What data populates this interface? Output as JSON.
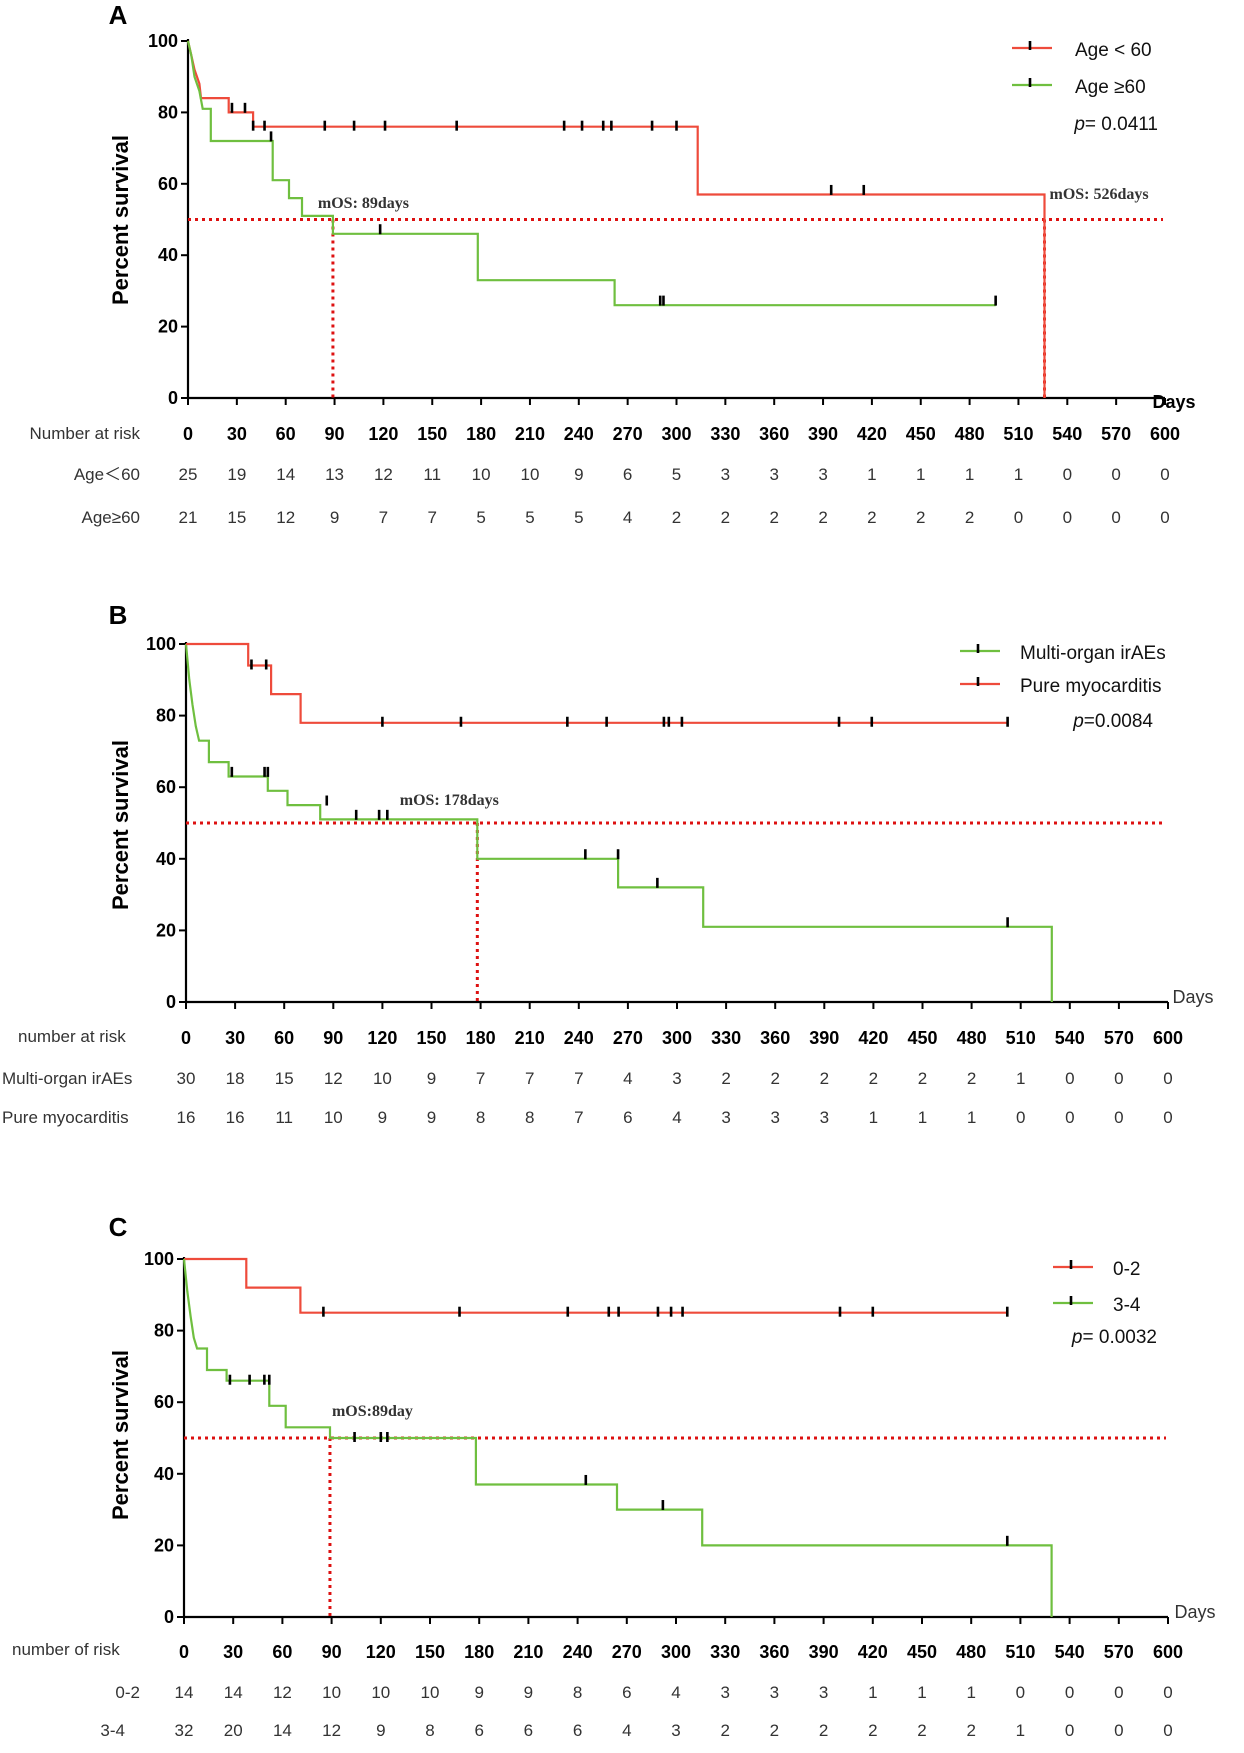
{
  "chart_data": [
    {
      "type": "line",
      "panel": "A",
      "ylabel": "Percent survival",
      "xlabel": "Days",
      "ylim": [
        0,
        100
      ],
      "y_ticks": [
        "0",
        "20",
        "40",
        "60",
        "80",
        "100"
      ],
      "x_ticks": [
        "0",
        "30",
        "60",
        "90",
        "120",
        "150",
        "180",
        "210",
        "240",
        "270",
        "300",
        "330",
        "360",
        "390",
        "420",
        "450",
        "480",
        "510",
        "540",
        "570",
        "600"
      ],
      "p_value_label": "p= 0.0411",
      "risk_title": "Number at risk",
      "series": [
        {
          "name": "Age < 60",
          "risk_label": "Age＜60",
          "color": "#ee4b3b",
          "steps": [
            [
              0,
              100
            ],
            [
              2,
              96
            ],
            [
              4,
              92
            ],
            [
              7,
              88
            ],
            [
              8,
              84
            ],
            [
              25,
              84
            ],
            [
              25,
              80
            ],
            [
              40,
              80
            ],
            [
              40,
              76
            ],
            [
              313,
              76
            ],
            [
              313,
              57
            ],
            [
              526,
              57
            ],
            [
              526,
              0
            ]
          ],
          "censors": [
            [
              27,
              81
            ],
            [
              35,
              81
            ],
            [
              40,
              76
            ],
            [
              47,
              76
            ],
            [
              84,
              76
            ],
            [
              102,
              76
            ],
            [
              121,
              76
            ],
            [
              165,
              76
            ],
            [
              231,
              76
            ],
            [
              242,
              76
            ],
            [
              255,
              76
            ],
            [
              260,
              76
            ],
            [
              285,
              76
            ],
            [
              300,
              76
            ],
            [
              395,
              58
            ],
            [
              415,
              58
            ]
          ],
          "risk": [
            "25",
            "19",
            "14",
            "13",
            "12",
            "11",
            "10",
            "10",
            "9",
            "6",
            "5",
            "3",
            "3",
            "3",
            "1",
            "1",
            "1",
            "1",
            "0",
            "0",
            "0"
          ]
        },
        {
          "name": "Age ≥60",
          "risk_label": "Age≥60",
          "color": "#6fbf3f",
          "steps": [
            [
              0,
              100
            ],
            [
              2,
              96
            ],
            [
              4,
              90
            ],
            [
              7,
              86
            ],
            [
              9,
              81
            ],
            [
              14,
              81
            ],
            [
              14,
              72
            ],
            [
              52,
              72
            ],
            [
              52,
              61
            ],
            [
              62,
              61
            ],
            [
              62,
              56
            ],
            [
              70,
              56
            ],
            [
              70,
              51
            ],
            [
              89,
              51
            ],
            [
              89,
              46
            ],
            [
              178,
              46
            ],
            [
              178,
              33
            ],
            [
              262,
              33
            ],
            [
              262,
              26
            ],
            [
              496,
              26
            ]
          ],
          "censors": [
            [
              51,
              73
            ],
            [
              118,
              47
            ],
            [
              290,
              27
            ],
            [
              292,
              27
            ],
            [
              496,
              27
            ]
          ],
          "risk": [
            "21",
            "15",
            "12",
            "9",
            "7",
            "7",
            "5",
            "5",
            "5",
            "4",
            "2",
            "2",
            "2",
            "2",
            "2",
            "2",
            "2",
            "0",
            "0",
            "0",
            "0"
          ]
        }
      ],
      "reference_line": {
        "y": 50,
        "color": "#dd1111"
      },
      "median_lines": [
        {
          "x": 89,
          "label": "mOS: 89days"
        },
        {
          "x": 526,
          "label": "mOS: 526days"
        }
      ]
    },
    {
      "type": "line",
      "panel": "B",
      "ylabel": "Percent survival",
      "xlabel": "Days",
      "ylim": [
        0,
        100
      ],
      "y_ticks": [
        "0",
        "20",
        "40",
        "60",
        "80",
        "100"
      ],
      "x_ticks": [
        "0",
        "30",
        "60",
        "90",
        "120",
        "150",
        "180",
        "210",
        "240",
        "270",
        "300",
        "330",
        "360",
        "390",
        "420",
        "450",
        "480",
        "510",
        "540",
        "570",
        "600"
      ],
      "p_value_label": "p=0.0084",
      "risk_title": "number at risk",
      "series": [
        {
          "name": "Multi-organ irAEs",
          "risk_label": "Multi-organ irAEs",
          "color": "#6fbf3f",
          "steps": [
            [
              0,
              100
            ],
            [
              2,
              90
            ],
            [
              4,
              83
            ],
            [
              6,
              77
            ],
            [
              8,
              73
            ],
            [
              14,
              73
            ],
            [
              14,
              67
            ],
            [
              26,
              67
            ],
            [
              26,
              63
            ],
            [
              50,
              63
            ],
            [
              50,
              59
            ],
            [
              62,
              59
            ],
            [
              62,
              55
            ],
            [
              82,
              55
            ],
            [
              82,
              51
            ],
            [
              178,
              51
            ],
            [
              178,
              40
            ],
            [
              264,
              40
            ],
            [
              264,
              32
            ],
            [
              316,
              32
            ],
            [
              316,
              21
            ],
            [
              529,
              21
            ],
            [
              529,
              0
            ]
          ],
          "censors": [
            [
              28,
              64
            ],
            [
              48,
              64
            ],
            [
              50,
              64
            ],
            [
              86,
              56
            ],
            [
              104,
              52
            ],
            [
              118,
              52
            ],
            [
              123,
              52
            ],
            [
              244,
              41
            ],
            [
              264,
              41
            ],
            [
              288,
              33
            ],
            [
              502,
              22
            ]
          ],
          "risk": [
            "30",
            "18",
            "15",
            "12",
            "10",
            "9",
            "7",
            "7",
            "7",
            "4",
            "3",
            "2",
            "2",
            "2",
            "2",
            "2",
            "2",
            "1",
            "0",
            "0",
            "0"
          ]
        },
        {
          "name": "Pure myocarditis",
          "risk_label": "Pure myocarditis",
          "color": "#ee4b3b",
          "steps": [
            [
              0,
              100
            ],
            [
              38,
              100
            ],
            [
              38,
              94
            ],
            [
              52,
              94
            ],
            [
              52,
              86
            ],
            [
              70,
              86
            ],
            [
              70,
              78
            ],
            [
              502,
              78
            ]
          ],
          "censors": [
            [
              40,
              94
            ],
            [
              49,
              94
            ],
            [
              120,
              78
            ],
            [
              168,
              78
            ],
            [
              233,
              78
            ],
            [
              257,
              78
            ],
            [
              292,
              78
            ],
            [
              295,
              78
            ],
            [
              303,
              78
            ],
            [
              399,
              78
            ],
            [
              419,
              78
            ],
            [
              502,
              78
            ]
          ],
          "risk": [
            "16",
            "16",
            "11",
            "10",
            "9",
            "9",
            "8",
            "8",
            "7",
            "6",
            "4",
            "3",
            "3",
            "3",
            "1",
            "1",
            "1",
            "0",
            "0",
            "0",
            "0"
          ]
        }
      ],
      "reference_line": {
        "y": 50,
        "color": "#dd1111"
      },
      "median_lines": [
        {
          "x": 178,
          "label": "mOS: 178days"
        }
      ]
    },
    {
      "type": "line",
      "panel": "C",
      "ylabel": "Percent survival",
      "xlabel": "Days",
      "ylim": [
        0,
        100
      ],
      "y_ticks": [
        "0",
        "20",
        "40",
        "60",
        "80",
        "100"
      ],
      "x_ticks": [
        "0",
        "30",
        "60",
        "90",
        "120",
        "150",
        "180",
        "210",
        "240",
        "270",
        "300",
        "330",
        "360",
        "390",
        "420",
        "450",
        "480",
        "510",
        "540",
        "570",
        "600"
      ],
      "p_value_label": "p= 0.0032",
      "risk_title": "number of risk",
      "series": [
        {
          "name": "0-2",
          "risk_label": "0-2",
          "color": "#ee4b3b",
          "steps": [
            [
              0,
              100
            ],
            [
              38,
              100
            ],
            [
              38,
              92
            ],
            [
              71,
              92
            ],
            [
              71,
              85
            ],
            [
              502,
              85
            ]
          ],
          "censors": [
            [
              85,
              85
            ],
            [
              168,
              85
            ],
            [
              234,
              85
            ],
            [
              259,
              85
            ],
            [
              265,
              85
            ],
            [
              289,
              85
            ],
            [
              297,
              85
            ],
            [
              304,
              85
            ],
            [
              400,
              85
            ],
            [
              420,
              85
            ],
            [
              502,
              85
            ]
          ],
          "risk": [
            "14",
            "14",
            "12",
            "10",
            "10",
            "10",
            "9",
            "9",
            "8",
            "6",
            "4",
            "3",
            "3",
            "3",
            "1",
            "1",
            "1",
            "0",
            "0",
            "0",
            "0"
          ]
        },
        {
          "name": "3-4",
          "risk_label": "3-4",
          "color": "#6fbf3f",
          "steps": [
            [
              0,
              100
            ],
            [
              2,
              91
            ],
            [
              4,
              84
            ],
            [
              6,
              78
            ],
            [
              8,
              75
            ],
            [
              14,
              75
            ],
            [
              14,
              69
            ],
            [
              26,
              69
            ],
            [
              26,
              66
            ],
            [
              52,
              66
            ],
            [
              52,
              59
            ],
            [
              62,
              59
            ],
            [
              62,
              53
            ],
            [
              89,
              53
            ],
            [
              89,
              50
            ],
            [
              178,
              50
            ],
            [
              178,
              37
            ],
            [
              264,
              37
            ],
            [
              264,
              30
            ],
            [
              316,
              30
            ],
            [
              316,
              20
            ],
            [
              529,
              20
            ],
            [
              529,
              0
            ]
          ],
          "censors": [
            [
              28,
              66
            ],
            [
              40,
              66
            ],
            [
              49,
              66
            ],
            [
              52,
              66
            ],
            [
              104,
              50
            ],
            [
              120,
              50
            ],
            [
              124,
              50
            ],
            [
              245,
              38
            ],
            [
              292,
              31
            ],
            [
              502,
              21
            ]
          ],
          "risk": [
            "32",
            "20",
            "14",
            "12",
            "9",
            "8",
            "6",
            "6",
            "6",
            "4",
            "3",
            "2",
            "2",
            "2",
            "2",
            "2",
            "2",
            "1",
            "0",
            "0",
            "0"
          ]
        }
      ],
      "reference_line": {
        "y": 50,
        "color": "#dd1111"
      },
      "median_lines": [
        {
          "x": 89,
          "label": "mOS:89day"
        }
      ]
    }
  ]
}
